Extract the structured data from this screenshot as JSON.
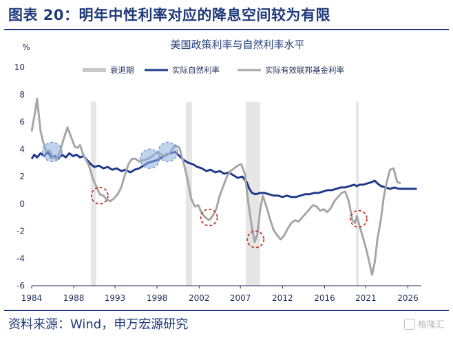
{
  "header": {
    "title": "图表 20：明年中性利率对应的降息空间较为有限"
  },
  "footer": {
    "source": "资料来源：Wind，申万宏源研究",
    "watermark": "格隆汇"
  },
  "chart_data": {
    "type": "line",
    "title": "美国政策利率与自然利率水平",
    "ylabel": "%",
    "xlabel": "",
    "ylim": [
      -6,
      10
    ],
    "yticks": [
      10,
      8,
      6,
      4,
      2,
      0,
      -2,
      -4,
      -6
    ],
    "xlim": [
      1984,
      2027.5
    ],
    "xticks": [
      "1984",
      "1988",
      "1993",
      "1998",
      "2002",
      "2007",
      "2012",
      "2016",
      "2021",
      "2026"
    ],
    "xtick_values": [
      1984,
      1988.7,
      1993.3,
      1998,
      2002.7,
      2007.3,
      2012,
      2016.7,
      2021.3,
      2026
    ],
    "legend": [
      "衰退期",
      "实际自然利率",
      "实际有效联邦基金利率"
    ],
    "recessions": [
      [
        1990.6,
        1991.2
      ],
      [
        2001.2,
        2001.9
      ],
      [
        2007.9,
        2009.5
      ],
      [
        2020.2,
        2020.4
      ]
    ],
    "highlight_circles": [
      {
        "x": 1986.3,
        "y": 3.8,
        "style": "blue"
      },
      {
        "x": 1991.6,
        "y": 0.6,
        "style": "red"
      },
      {
        "x": 1997.2,
        "y": 3.3,
        "style": "blue"
      },
      {
        "x": 1999.2,
        "y": 3.8,
        "style": "blue"
      },
      {
        "x": 2003.8,
        "y": -1.0,
        "style": "red"
      },
      {
        "x": 2009.0,
        "y": -2.6,
        "style": "red"
      },
      {
        "x": 2020.5,
        "y": -1.1,
        "style": "red"
      }
    ],
    "series": [
      {
        "name": "实际自然利率",
        "color": "#1f3a8a",
        "x": [
          1984,
          1984.3,
          1984.6,
          1985,
          1985.4,
          1985.8,
          1986.2,
          1986.6,
          1987,
          1987.4,
          1987.8,
          1988.2,
          1988.6,
          1989,
          1989.4,
          1989.8,
          1990.2,
          1990.6,
          1991,
          1991.5,
          1992,
          1992.5,
          1993,
          1993.5,
          1994,
          1994.5,
          1995,
          1995.5,
          1996,
          1996.5,
          1997,
          1997.5,
          1998,
          1998.5,
          1999,
          1999.5,
          2000,
          2000.5,
          2001,
          2001.5,
          2002,
          2002.5,
          2003,
          2003.5,
          2004,
          2004.5,
          2005,
          2005.5,
          2006,
          2006.5,
          2007,
          2007.5,
          2008,
          2008.3,
          2008.6,
          2009,
          2009.5,
          2010,
          2010.5,
          2011,
          2011.5,
          2012,
          2012.5,
          2013,
          2013.5,
          2014,
          2014.5,
          2015,
          2015.5,
          2016,
          2016.5,
          2017,
          2017.5,
          2018,
          2018.5,
          2019,
          2019.5,
          2020,
          2020.3,
          2020.6,
          2021,
          2021.5,
          2022,
          2022.3,
          2022.6,
          2023,
          2023.5,
          2024,
          2024.5,
          2025,
          2025.5,
          2026,
          2026.5,
          2027
        ],
        "values": [
          3.3,
          3.6,
          3.4,
          3.7,
          3.5,
          3.8,
          3.4,
          3.5,
          3.3,
          3.6,
          3.4,
          3.7,
          3.5,
          3.6,
          3.4,
          3.5,
          3.2,
          2.9,
          2.7,
          2.8,
          2.6,
          2.7,
          2.5,
          2.6,
          2.4,
          2.5,
          2.3,
          2.5,
          2.6,
          2.8,
          3.0,
          3.1,
          3.2,
          3.4,
          3.6,
          3.7,
          3.8,
          3.5,
          3.2,
          3.0,
          2.9,
          2.7,
          2.6,
          2.4,
          2.5,
          2.3,
          2.4,
          2.2,
          2.3,
          2.1,
          1.9,
          2.0,
          1.6,
          1.1,
          0.8,
          0.7,
          0.8,
          0.8,
          0.7,
          0.6,
          0.6,
          0.5,
          0.6,
          0.5,
          0.5,
          0.6,
          0.7,
          0.7,
          0.8,
          0.8,
          0.9,
          1.0,
          1.0,
          1.1,
          1.2,
          1.2,
          1.3,
          1.4,
          1.3,
          1.4,
          1.4,
          1.5,
          1.6,
          1.7,
          1.5,
          1.3,
          1.2,
          1.1,
          1.2,
          1.1,
          1.1,
          1.1,
          1.1,
          1.1
        ]
      },
      {
        "name": "实际有效联邦基金利率",
        "color": "#a6a6a6",
        "x": [
          1984,
          1984.4,
          1984.6,
          1984.8,
          1985,
          1985.3,
          1985.6,
          1986,
          1986.4,
          1986.8,
          1987.2,
          1987.6,
          1988,
          1988.4,
          1988.8,
          1989.1,
          1989.4,
          1989.7,
          1990,
          1990.4,
          1990.8,
          1991.2,
          1991.6,
          1992,
          1992.4,
          1992.8,
          1993.2,
          1993.6,
          1994,
          1994.4,
          1994.8,
          1995.2,
          1995.6,
          1996,
          1996.5,
          1997,
          1997.5,
          1998,
          1998.5,
          1999,
          1999.5,
          2000,
          2000.5,
          2001,
          2001.4,
          2001.8,
          2002.2,
          2002.6,
          2003,
          2003.4,
          2003.8,
          2004.2,
          2004.6,
          2005,
          2005.4,
          2005.8,
          2006.2,
          2006.6,
          2007,
          2007.4,
          2007.8,
          2008.2,
          2008.6,
          2008.9,
          2009.2,
          2009.5,
          2009.8,
          2010.2,
          2010.6,
          2011,
          2011.4,
          2011.8,
          2012.2,
          2012.6,
          2013,
          2013.4,
          2013.8,
          2014.2,
          2014.6,
          2015,
          2015.4,
          2015.8,
          2016.2,
          2016.6,
          2017,
          2017.4,
          2017.8,
          2018.2,
          2018.6,
          2019,
          2019.4,
          2019.8,
          2020.1,
          2020.3,
          2020.6,
          2021,
          2021.3,
          2021.6,
          2022,
          2022.3,
          2022.6,
          2023,
          2023.3,
          2023.6,
          2024,
          2024.4,
          2024.8,
          2025.2
        ],
        "values": [
          5.3,
          6.8,
          7.7,
          6.5,
          5.3,
          4.5,
          3.9,
          3.9,
          3.4,
          3.3,
          3.9,
          4.8,
          5.6,
          4.9,
          4.2,
          4.1,
          4.3,
          3.7,
          3.3,
          2.8,
          1.9,
          1.3,
          0.7,
          0.6,
          0.3,
          0.2,
          0.4,
          0.7,
          1.2,
          2.1,
          2.9,
          3.3,
          3.3,
          3.1,
          3.2,
          3.3,
          3.5,
          3.8,
          3.6,
          3.5,
          3.8,
          4.3,
          4.1,
          2.9,
          1.8,
          0.4,
          -0.2,
          -0.1,
          -0.7,
          -1.0,
          -1.2,
          -0.9,
          -0.4,
          0.6,
          1.3,
          2.0,
          2.4,
          2.6,
          2.8,
          2.9,
          2.2,
          0.0,
          -1.8,
          -2.8,
          -2.2,
          -0.5,
          0.6,
          -0.2,
          -1.1,
          -1.9,
          -2.3,
          -2.6,
          -2.3,
          -1.8,
          -1.4,
          -1.2,
          -1.3,
          -1.0,
          -0.7,
          -0.4,
          -0.1,
          -0.2,
          -0.5,
          -0.4,
          -0.6,
          -0.3,
          0.2,
          0.5,
          0.8,
          0.9,
          0.2,
          -1.2,
          -1.4,
          -0.9,
          -1.6,
          -2.5,
          -3.2,
          -4.0,
          -5.2,
          -4.3,
          -2.6,
          -1.1,
          0.5,
          1.5,
          2.5,
          2.6,
          1.6,
          1.5
        ]
      }
    ]
  }
}
